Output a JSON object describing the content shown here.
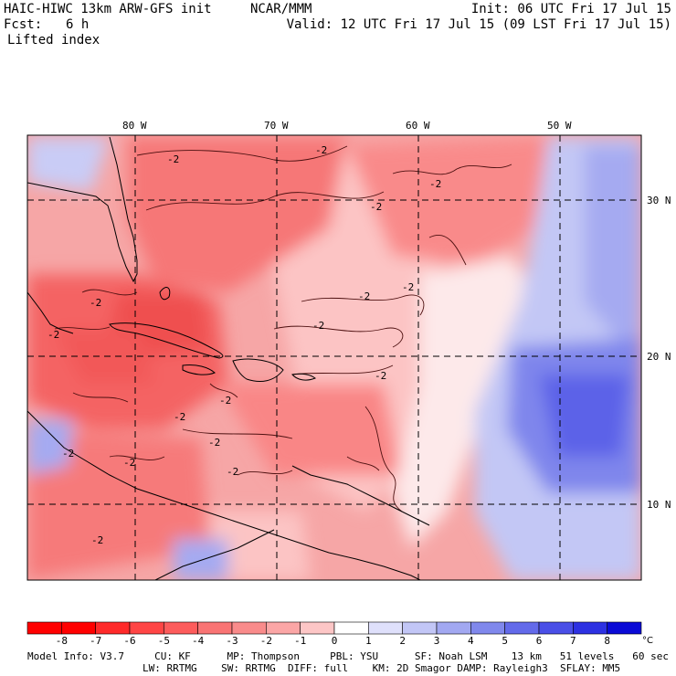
{
  "header": {
    "model_title": "HAIC-HIWC 13km ARW-GFS init",
    "org": "NCAR/MMM",
    "init": "Init: 06 UTC Fri 17 Jul 15",
    "fcst_label": "Fcst:",
    "fcst_value": "6 h",
    "valid": "Valid: 12 UTC Fri 17 Jul 15 (09 LST Fri 17 Jul 15)",
    "field": "Lifted index"
  },
  "map": {
    "lon_labels": [
      "80 W",
      "70 W",
      "60 W",
      "50 W"
    ],
    "lat_labels": [
      "30 N",
      "20 N",
      "10 N"
    ],
    "contour_labels": [
      "-2",
      "-2",
      "-2",
      "-2",
      "-2",
      "-2",
      "-2",
      "-2",
      "-2",
      "-2",
      "-2",
      "-2",
      "-2",
      "-2",
      "-2",
      "-2",
      "-2"
    ]
  },
  "colorbar": {
    "ticks": [
      "-8",
      "-7",
      "-6",
      "-5",
      "-4",
      "-3",
      "-2",
      "-1",
      "0",
      "1",
      "2",
      "3",
      "4",
      "5",
      "6",
      "7",
      "8"
    ],
    "unit": "°C",
    "colors": [
      "#ff0000",
      "#ff2a2a",
      "#ff4545",
      "#fd5c5c",
      "#f97474",
      "#f98b8b",
      "#fba6a6",
      "#fdc6c6",
      "#ffffff",
      "#dfe0fb",
      "#c2c6f6",
      "#a2a8f1",
      "#8088ec",
      "#636aea",
      "#4a4fe7",
      "#2d31e2",
      "#0a0ad6"
    ]
  },
  "footer": {
    "line1": "Model Info: V3.7     CU: KF      MP: Thompson     PBL: YSU      SF: Noah LSM    13 km   51 levels   60 sec",
    "line2": "LW: RRTMG    SW: RRTMG  DIFF: full    KM: 2D Smagor DAMP: Rayleigh3  SFLAY: MM5"
  }
}
